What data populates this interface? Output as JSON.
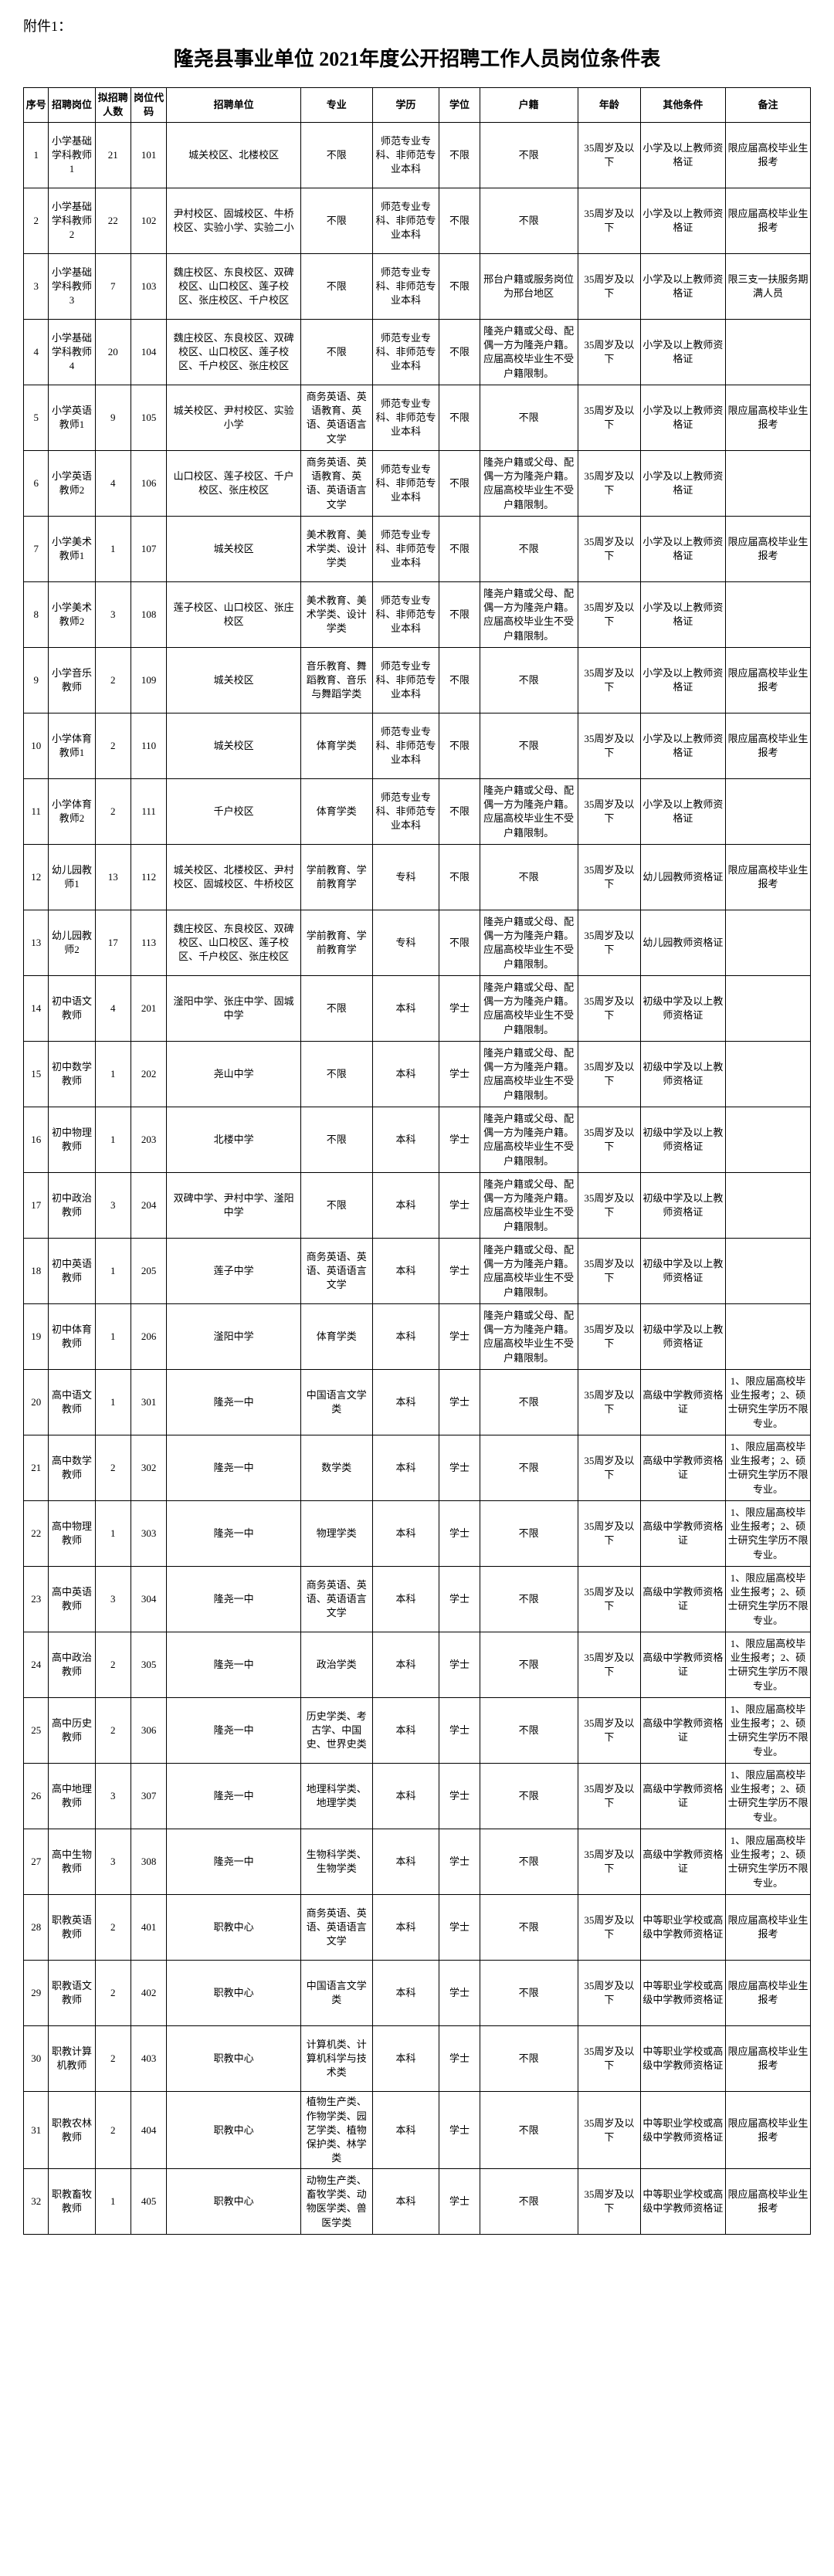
{
  "attachment_label": "附件1：",
  "title": "隆尧县事业单位 2021年度公开招聘工作人员岗位条件表",
  "headers": [
    "序号",
    "招聘岗位",
    "拟招聘人数",
    "岗位代码",
    "招聘单位",
    "专业",
    "学历",
    "学位",
    "户籍",
    "年龄",
    "其他条件",
    "备注"
  ],
  "rows": [
    {
      "seq": "1",
      "pos": "小学基础学科教师1",
      "num": "21",
      "code": "101",
      "unit": "城关校区、北楼校区",
      "major": "不限",
      "edu": "师范专业专科、非师范专业本科",
      "deg": "不限",
      "huji": "不限",
      "age": "35周岁及以下",
      "other": "小学及以上教师资格证",
      "note": "限应届高校毕业生报考"
    },
    {
      "seq": "2",
      "pos": "小学基础学科教师2",
      "num": "22",
      "code": "102",
      "unit": "尹村校区、固城校区、牛桥校区、实验小学、实验二小",
      "major": "不限",
      "edu": "师范专业专科、非师范专业本科",
      "deg": "不限",
      "huji": "不限",
      "age": "35周岁及以下",
      "other": "小学及以上教师资格证",
      "note": "限应届高校毕业生报考"
    },
    {
      "seq": "3",
      "pos": "小学基础学科教师3",
      "num": "7",
      "code": "103",
      "unit": "魏庄校区、东良校区、双碑校区、山口校区、莲子校区、张庄校区、千户校区",
      "major": "不限",
      "edu": "师范专业专科、非师范专业本科",
      "deg": "不限",
      "huji": "邢台户籍或服务岗位为邢台地区",
      "age": "35周岁及以下",
      "other": "小学及以上教师资格证",
      "note": "限三支一扶服务期满人员"
    },
    {
      "seq": "4",
      "pos": "小学基础学科教师4",
      "num": "20",
      "code": "104",
      "unit": "魏庄校区、东良校区、双碑校区、山口校区、莲子校区、千户校区、张庄校区",
      "major": "不限",
      "edu": "师范专业专科、非师范专业本科",
      "deg": "不限",
      "huji": "隆尧户籍或父母、配偶一方为隆尧户籍。应届高校毕业生不受户籍限制。",
      "age": "35周岁及以下",
      "other": "小学及以上教师资格证",
      "note": ""
    },
    {
      "seq": "5",
      "pos": "小学英语教师1",
      "num": "9",
      "code": "105",
      "unit": "城关校区、尹村校区、实验小学",
      "major": "商务英语、英语教育、英语、英语语言文学",
      "edu": "师范专业专科、非师范专业本科",
      "deg": "不限",
      "huji": "不限",
      "age": "35周岁及以下",
      "other": "小学及以上教师资格证",
      "note": "限应届高校毕业生报考"
    },
    {
      "seq": "6",
      "pos": "小学英语教师2",
      "num": "4",
      "code": "106",
      "unit": "山口校区、莲子校区、千户校区、张庄校区",
      "major": "商务英语、英语教育、英语、英语语言文学",
      "edu": "师范专业专科、非师范专业本科",
      "deg": "不限",
      "huji": "隆尧户籍或父母、配偶一方为隆尧户籍。应届高校毕业生不受户籍限制。",
      "age": "35周岁及以下",
      "other": "小学及以上教师资格证",
      "note": ""
    },
    {
      "seq": "7",
      "pos": "小学美术教师1",
      "num": "1",
      "code": "107",
      "unit": "城关校区",
      "major": "美术教育、美术学类、设计学类",
      "edu": "师范专业专科、非师范专业本科",
      "deg": "不限",
      "huji": "不限",
      "age": "35周岁及以下",
      "other": "小学及以上教师资格证",
      "note": "限应届高校毕业生报考"
    },
    {
      "seq": "8",
      "pos": "小学美术教师2",
      "num": "3",
      "code": "108",
      "unit": "莲子校区、山口校区、张庄校区",
      "major": "美术教育、美术学类、设计学类",
      "edu": "师范专业专科、非师范专业本科",
      "deg": "不限",
      "huji": "隆尧户籍或父母、配偶一方为隆尧户籍。应届高校毕业生不受户籍限制。",
      "age": "35周岁及以下",
      "other": "小学及以上教师资格证",
      "note": ""
    },
    {
      "seq": "9",
      "pos": "小学音乐教师",
      "num": "2",
      "code": "109",
      "unit": "城关校区",
      "major": "音乐教育、舞蹈教育、音乐与舞蹈学类",
      "edu": "师范专业专科、非师范专业本科",
      "deg": "不限",
      "huji": "不限",
      "age": "35周岁及以下",
      "other": "小学及以上教师资格证",
      "note": "限应届高校毕业生报考"
    },
    {
      "seq": "10",
      "pos": "小学体育教师1",
      "num": "2",
      "code": "110",
      "unit": "城关校区",
      "major": "体育学类",
      "edu": "师范专业专科、非师范专业本科",
      "deg": "不限",
      "huji": "不限",
      "age": "35周岁及以下",
      "other": "小学及以上教师资格证",
      "note": "限应届高校毕业生报考"
    },
    {
      "seq": "11",
      "pos": "小学体育教师2",
      "num": "2",
      "code": "111",
      "unit": "千户校区",
      "major": "体育学类",
      "edu": "师范专业专科、非师范专业本科",
      "deg": "不限",
      "huji": "隆尧户籍或父母、配偶一方为隆尧户籍。应届高校毕业生不受户籍限制。",
      "age": "35周岁及以下",
      "other": "小学及以上教师资格证",
      "note": ""
    },
    {
      "seq": "12",
      "pos": "幼儿园教师1",
      "num": "13",
      "code": "112",
      "unit": "城关校区、北楼校区、尹村校区、固城校区、牛桥校区",
      "major": "学前教育、学前教育学",
      "edu": "专科",
      "deg": "不限",
      "huji": "不限",
      "age": "35周岁及以下",
      "other": "幼儿园教师资格证",
      "note": "限应届高校毕业生报考"
    },
    {
      "seq": "13",
      "pos": "幼儿园教师2",
      "num": "17",
      "code": "113",
      "unit": "魏庄校区、东良校区、双碑校区、山口校区、莲子校区、千户校区、张庄校区",
      "major": "学前教育、学前教育学",
      "edu": "专科",
      "deg": "不限",
      "huji": "隆尧户籍或父母、配偶一方为隆尧户籍。应届高校毕业生不受户籍限制。",
      "age": "35周岁及以下",
      "other": "幼儿园教师资格证",
      "note": ""
    },
    {
      "seq": "14",
      "pos": "初中语文教师",
      "num": "4",
      "code": "201",
      "unit": "滏阳中学、张庄中学、固城中学",
      "major": "不限",
      "edu": "本科",
      "deg": "学士",
      "huji": "隆尧户籍或父母、配偶一方为隆尧户籍。应届高校毕业生不受户籍限制。",
      "age": "35周岁及以下",
      "other": "初级中学及以上教师资格证",
      "note": ""
    },
    {
      "seq": "15",
      "pos": "初中数学教师",
      "num": "1",
      "code": "202",
      "unit": "尧山中学",
      "major": "不限",
      "edu": "本科",
      "deg": "学士",
      "huji": "隆尧户籍或父母、配偶一方为隆尧户籍。应届高校毕业生不受户籍限制。",
      "age": "35周岁及以下",
      "other": "初级中学及以上教师资格证",
      "note": ""
    },
    {
      "seq": "16",
      "pos": "初中物理教师",
      "num": "1",
      "code": "203",
      "unit": "北楼中学",
      "major": "不限",
      "edu": "本科",
      "deg": "学士",
      "huji": "隆尧户籍或父母、配偶一方为隆尧户籍。应届高校毕业生不受户籍限制。",
      "age": "35周岁及以下",
      "other": "初级中学及以上教师资格证",
      "note": ""
    },
    {
      "seq": "17",
      "pos": "初中政治教师",
      "num": "3",
      "code": "204",
      "unit": "双碑中学、尹村中学、滏阳中学",
      "major": "不限",
      "edu": "本科",
      "deg": "学士",
      "huji": "隆尧户籍或父母、配偶一方为隆尧户籍。应届高校毕业生不受户籍限制。",
      "age": "35周岁及以下",
      "other": "初级中学及以上教师资格证",
      "note": ""
    },
    {
      "seq": "18",
      "pos": "初中英语教师",
      "num": "1",
      "code": "205",
      "unit": "莲子中学",
      "major": "商务英语、英语、英语语言文学",
      "edu": "本科",
      "deg": "学士",
      "huji": "隆尧户籍或父母、配偶一方为隆尧户籍。应届高校毕业生不受户籍限制。",
      "age": "35周岁及以下",
      "other": "初级中学及以上教师资格证",
      "note": ""
    },
    {
      "seq": "19",
      "pos": "初中体育教师",
      "num": "1",
      "code": "206",
      "unit": "滏阳中学",
      "major": "体育学类",
      "edu": "本科",
      "deg": "学士",
      "huji": "隆尧户籍或父母、配偶一方为隆尧户籍。应届高校毕业生不受户籍限制。",
      "age": "35周岁及以下",
      "other": "初级中学及以上教师资格证",
      "note": ""
    },
    {
      "seq": "20",
      "pos": "高中语文教师",
      "num": "1",
      "code": "301",
      "unit": "隆尧一中",
      "major": "中国语言文学类",
      "edu": "本科",
      "deg": "学士",
      "huji": "不限",
      "age": "35周岁及以下",
      "other": "高级中学教师资格证",
      "note": "1、限应届高校毕业生报考；2、硕士研究生学历不限专业。"
    },
    {
      "seq": "21",
      "pos": "高中数学教师",
      "num": "2",
      "code": "302",
      "unit": "隆尧一中",
      "major": "数学类",
      "edu": "本科",
      "deg": "学士",
      "huji": "不限",
      "age": "35周岁及以下",
      "other": "高级中学教师资格证",
      "note": "1、限应届高校毕业生报考；2、硕士研究生学历不限专业。"
    },
    {
      "seq": "22",
      "pos": "高中物理教师",
      "num": "1",
      "code": "303",
      "unit": "隆尧一中",
      "major": "物理学类",
      "edu": "本科",
      "deg": "学士",
      "huji": "不限",
      "age": "35周岁及以下",
      "other": "高级中学教师资格证",
      "note": "1、限应届高校毕业生报考；2、硕士研究生学历不限专业。"
    },
    {
      "seq": "23",
      "pos": "高中英语教师",
      "num": "3",
      "code": "304",
      "unit": "隆尧一中",
      "major": "商务英语、英语、英语语言文学",
      "edu": "本科",
      "deg": "学士",
      "huji": "不限",
      "age": "35周岁及以下",
      "other": "高级中学教师资格证",
      "note": "1、限应届高校毕业生报考；2、硕士研究生学历不限专业。"
    },
    {
      "seq": "24",
      "pos": "高中政治教师",
      "num": "2",
      "code": "305",
      "unit": "隆尧一中",
      "major": "政治学类",
      "edu": "本科",
      "deg": "学士",
      "huji": "不限",
      "age": "35周岁及以下",
      "other": "高级中学教师资格证",
      "note": "1、限应届高校毕业生报考；2、硕士研究生学历不限专业。"
    },
    {
      "seq": "25",
      "pos": "高中历史教师",
      "num": "2",
      "code": "306",
      "unit": "隆尧一中",
      "major": "历史学类、考古学、中国史、世界史类",
      "edu": "本科",
      "deg": "学士",
      "huji": "不限",
      "age": "35周岁及以下",
      "other": "高级中学教师资格证",
      "note": "1、限应届高校毕业生报考；2、硕士研究生学历不限专业。"
    },
    {
      "seq": "26",
      "pos": "高中地理教师",
      "num": "3",
      "code": "307",
      "unit": "隆尧一中",
      "major": "地理科学类、地理学类",
      "edu": "本科",
      "deg": "学士",
      "huji": "不限",
      "age": "35周岁及以下",
      "other": "高级中学教师资格证",
      "note": "1、限应届高校毕业生报考；2、硕士研究生学历不限专业。"
    },
    {
      "seq": "27",
      "pos": "高中生物教师",
      "num": "3",
      "code": "308",
      "unit": "隆尧一中",
      "major": "生物科学类、生物学类",
      "edu": "本科",
      "deg": "学士",
      "huji": "不限",
      "age": "35周岁及以下",
      "other": "高级中学教师资格证",
      "note": "1、限应届高校毕业生报考；2、硕士研究生学历不限专业。"
    },
    {
      "seq": "28",
      "pos": "职教英语教师",
      "num": "2",
      "code": "401",
      "unit": "职教中心",
      "major": "商务英语、英语、英语语言文学",
      "edu": "本科",
      "deg": "学士",
      "huji": "不限",
      "age": "35周岁及以下",
      "other": "中等职业学校或高级中学教师资格证",
      "note": "限应届高校毕业生报考"
    },
    {
      "seq": "29",
      "pos": "职教语文教师",
      "num": "2",
      "code": "402",
      "unit": "职教中心",
      "major": "中国语言文学类",
      "edu": "本科",
      "deg": "学士",
      "huji": "不限",
      "age": "35周岁及以下",
      "other": "中等职业学校或高级中学教师资格证",
      "note": "限应届高校毕业生报考"
    },
    {
      "seq": "30",
      "pos": "职教计算机教师",
      "num": "2",
      "code": "403",
      "unit": "职教中心",
      "major": "计算机类、计算机科学与技术类",
      "edu": "本科",
      "deg": "学士",
      "huji": "不限",
      "age": "35周岁及以下",
      "other": "中等职业学校或高级中学教师资格证",
      "note": "限应届高校毕业生报考"
    },
    {
      "seq": "31",
      "pos": "职教农林教师",
      "num": "2",
      "code": "404",
      "unit": "职教中心",
      "major": "植物生产类、作物学类、园艺学类、植物保护类、林学类",
      "edu": "本科",
      "deg": "学士",
      "huji": "不限",
      "age": "35周岁及以下",
      "other": "中等职业学校或高级中学教师资格证",
      "note": "限应届高校毕业生报考"
    },
    {
      "seq": "32",
      "pos": "职教畜牧教师",
      "num": "1",
      "code": "405",
      "unit": "职教中心",
      "major": "动物生产类、畜牧学类、动物医学类、兽医学类",
      "edu": "本科",
      "deg": "学士",
      "huji": "不限",
      "age": "35周岁及以下",
      "other": "中等职业学校或高级中学教师资格证",
      "note": "限应届高校毕业生报考"
    }
  ]
}
